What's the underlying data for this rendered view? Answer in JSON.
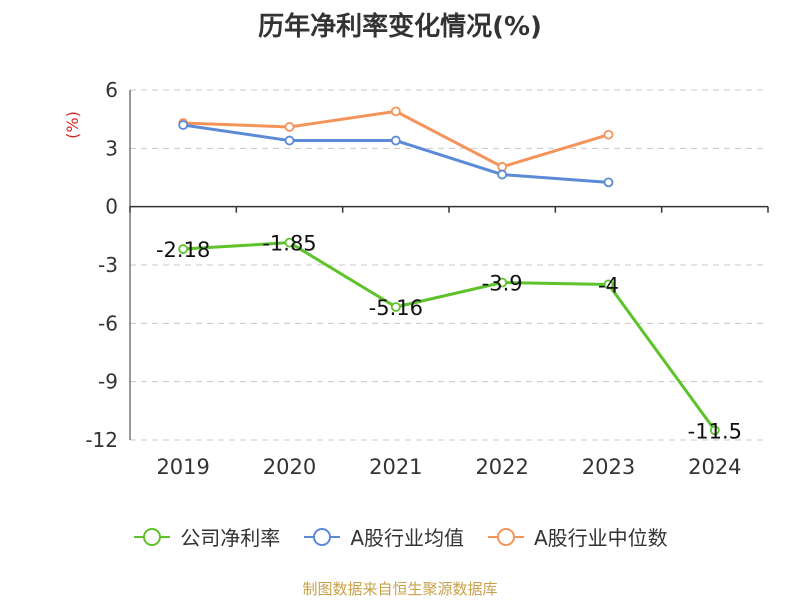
{
  "title": "历年净利率变化情况(%)",
  "source": "制图数据来自恒生聚源数据库",
  "colors": {
    "axis_unit": "#d62728",
    "grid": "#c8c8c8",
    "axis": "#333333"
  },
  "chart_data": {
    "type": "line",
    "title": "历年净利率变化情况(%)",
    "ylabel": "(%)",
    "ylim": [
      -12,
      6
    ],
    "yticks": [
      6,
      3,
      0,
      -3,
      -6,
      -9,
      -12
    ],
    "categories": [
      "2019",
      "2020",
      "2021",
      "2022",
      "2023",
      "2024"
    ],
    "grid": true,
    "legend_position": "bottom",
    "series": [
      {
        "name": "公司净利率",
        "color": "#5ec22b",
        "values": [
          -2.18,
          -1.85,
          -5.16,
          -3.9,
          -4,
          -11.5
        ],
        "labels": [
          "-2.18",
          "-1.85",
          "-5.16",
          "-3.9",
          "-4",
          "-11.5"
        ]
      },
      {
        "name": "A股行业均值",
        "color": "#5b8ad6",
        "values": [
          4.2,
          3.4,
          3.4,
          1.65,
          1.25,
          null
        ]
      },
      {
        "name": "A股行业中位数",
        "color": "#f4935a",
        "values": [
          4.3,
          4.1,
          4.9,
          2.05,
          3.7,
          null
        ]
      }
    ]
  }
}
